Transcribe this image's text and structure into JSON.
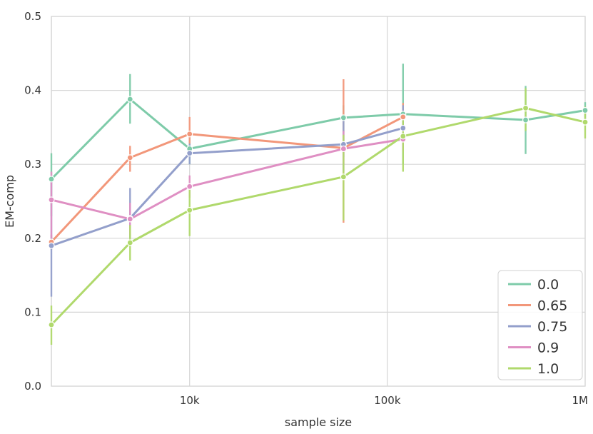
{
  "chart_data": {
    "type": "line",
    "xlabel": "sample size",
    "ylabel": "EM-comp",
    "x_scale": "log",
    "xlim": [
      2000,
      1000000
    ],
    "ylim": [
      0,
      0.5
    ],
    "x_ticks": [
      {
        "value": 10000,
        "label": "10k"
      },
      {
        "value": 100000,
        "label": "100k"
      },
      {
        "value": 1000000,
        "label": "1M"
      }
    ],
    "y_ticks": [
      {
        "value": 0.0,
        "label": "0.0"
      },
      {
        "value": 0.1,
        "label": "0.1"
      },
      {
        "value": 0.2,
        "label": "0.2"
      },
      {
        "value": 0.3,
        "label": "0.3"
      },
      {
        "value": 0.4,
        "label": "0.4"
      },
      {
        "value": 0.5,
        "label": "0.5"
      }
    ],
    "grid": true,
    "legend_position": "bottom-right",
    "series": [
      {
        "name": "0.0",
        "color": "#7ecba9",
        "x": [
          2000,
          5000,
          10000,
          60000,
          120000,
          500000,
          1000000
        ],
        "y": [
          0.28,
          0.388,
          0.321,
          0.363,
          0.368,
          0.36,
          0.373
        ],
        "err_low": [
          0.23,
          0.355,
          0.3,
          0.31,
          0.3,
          0.314,
          0.355
        ],
        "err_high": [
          0.315,
          0.422,
          0.337,
          0.38,
          0.436,
          0.406,
          0.384
        ]
      },
      {
        "name": "0.65",
        "color": "#f2977a",
        "x": [
          2000,
          5000,
          10000,
          60000,
          120000
        ],
        "y": [
          0.195,
          0.309,
          0.341,
          0.322,
          0.364
        ],
        "err_low": [
          0.185,
          0.29,
          0.32,
          0.221,
          0.341
        ],
        "err_high": [
          0.205,
          0.325,
          0.364,
          0.415,
          0.383
        ]
      },
      {
        "name": "0.75",
        "color": "#939fcb",
        "x": [
          2000,
          5000,
          10000,
          60000,
          120000
        ],
        "y": [
          0.19,
          0.227,
          0.315,
          0.327,
          0.349
        ],
        "err_low": [
          0.121,
          0.2,
          0.3,
          0.29,
          0.318
        ],
        "err_high": [
          0.277,
          0.268,
          0.328,
          0.36,
          0.38
        ]
      },
      {
        "name": "0.9",
        "color": "#df8fc3",
        "x": [
          2000,
          5000,
          10000,
          60000,
          120000
        ],
        "y": [
          0.252,
          0.226,
          0.27,
          0.321,
          0.334
        ],
        "err_low": [
          0.2,
          0.205,
          0.255,
          0.3,
          0.318
        ],
        "err_high": [
          0.29,
          0.248,
          0.285,
          0.345,
          0.352
        ]
      },
      {
        "name": "1.0",
        "color": "#b0d96c",
        "x": [
          2000,
          5000,
          10000,
          60000,
          120000,
          500000,
          1000000
        ],
        "y": [
          0.083,
          0.194,
          0.238,
          0.283,
          0.338,
          0.376,
          0.357
        ],
        "err_low": [
          0.056,
          0.17,
          0.203,
          0.224,
          0.29,
          0.345,
          0.335
        ],
        "err_high": [
          0.109,
          0.218,
          0.27,
          0.34,
          0.37,
          0.403,
          0.378
        ]
      }
    ]
  }
}
